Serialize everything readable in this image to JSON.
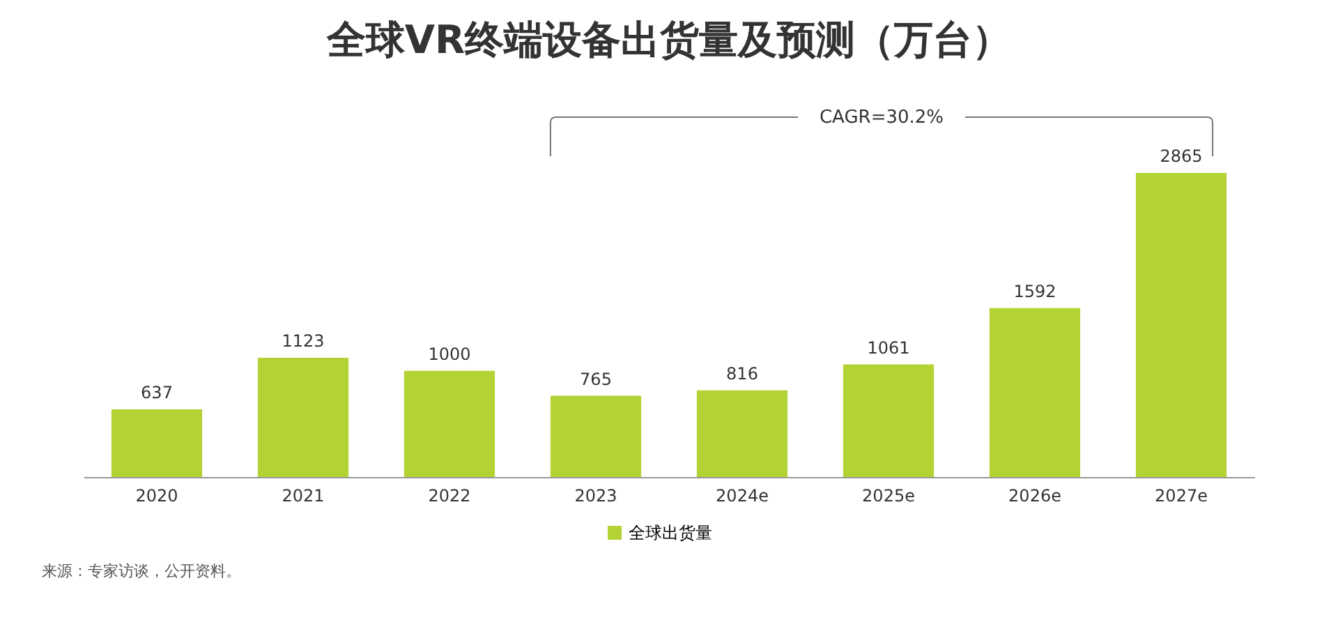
{
  "chart_data": {
    "type": "bar",
    "title": "全球VR终端设备出货量及预测（万台）",
    "categories": [
      "2020",
      "2021",
      "2022",
      "2023",
      "2024e",
      "2025e",
      "2026e",
      "2027e"
    ],
    "series": [
      {
        "name": "全球出货量",
        "color": "#b3d334",
        "values": [
          637,
          1123,
          1000,
          765,
          816,
          1061,
          1592,
          2865
        ]
      }
    ],
    "data_labels": true,
    "legend": "bottom",
    "grid": false,
    "annotations": [
      "CAGR=30.2%",
      "来源：专家访谈，公开资料。"
    ]
  }
}
